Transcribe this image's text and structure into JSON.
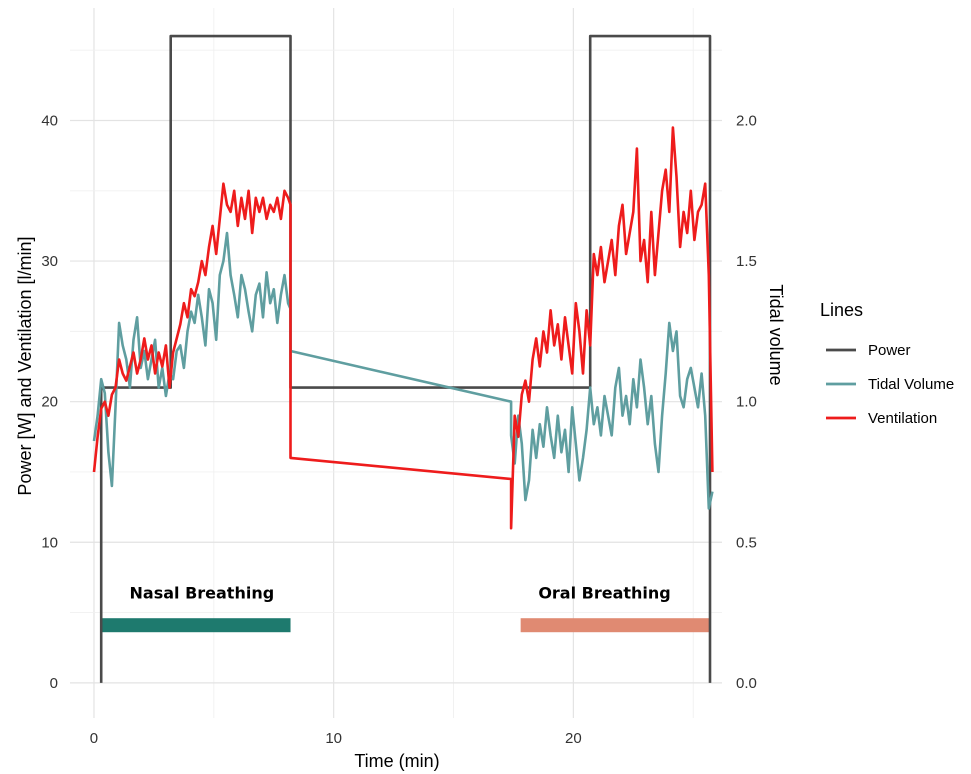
{
  "chart_data": {
    "type": "line",
    "xlabel": "Time (min)",
    "ylabel": "Power [W] and Ventilation [l/min]",
    "y2label": "Tidal volume",
    "xlim": [
      -1,
      26.2
    ],
    "ylim": [
      -2.5,
      48
    ],
    "y2lim": [
      -0.125,
      2.4
    ],
    "x_ticks": [
      0,
      10,
      20
    ],
    "y_ticks": [
      0,
      10,
      20,
      30,
      40
    ],
    "y2_ticks": [
      0.0,
      0.5,
      1.0,
      1.5,
      2.0
    ],
    "x_tick_labels": [
      "0",
      "10",
      "20"
    ],
    "y_tick_labels": [
      "0",
      "10",
      "20",
      "30",
      "40"
    ],
    "y2_tick_labels": [
      "0.0",
      "0.5",
      "1.0",
      "1.5",
      "2.0"
    ],
    "grid": true,
    "legend": {
      "title": "Lines",
      "position": "right",
      "entries": [
        {
          "label": "Power",
          "color": "#4a4a4a"
        },
        {
          "label": "Tidal Volume",
          "color": "#5f9ea0"
        },
        {
          "label": "Ventilation",
          "color": "#ee1c1c"
        }
      ]
    },
    "series": [
      {
        "name": "Power",
        "axis": "left",
        "color": "#4a4a4a",
        "x": [
          0.3,
          0.3,
          3.2,
          3.2,
          8.2,
          8.2,
          20.7,
          20.7,
          25.7,
          25.7
        ],
        "y": [
          0,
          21,
          21,
          46,
          46,
          21,
          21,
          46,
          46,
          0
        ]
      },
      {
        "name": "Tidal Volume",
        "axis": "right",
        "color": "#5f9ea0",
        "x": [
          0.0,
          0.15,
          0.3,
          0.45,
          0.6,
          0.75,
          0.9,
          1.05,
          1.2,
          1.35,
          1.5,
          1.65,
          1.8,
          1.95,
          2.1,
          2.25,
          2.4,
          2.55,
          2.7,
          2.85,
          3.0,
          3.15,
          3.3,
          3.45,
          3.6,
          3.75,
          3.9,
          4.05,
          4.2,
          4.35,
          4.5,
          4.65,
          4.8,
          4.95,
          5.1,
          5.25,
          5.4,
          5.55,
          5.7,
          5.85,
          6.0,
          6.15,
          6.3,
          6.45,
          6.6,
          6.75,
          6.9,
          7.05,
          7.2,
          7.35,
          7.5,
          7.65,
          7.8,
          7.95,
          8.1,
          8.2,
          8.2,
          17.4,
          17.4,
          17.55,
          17.7,
          17.85,
          18.0,
          18.15,
          18.3,
          18.45,
          18.6,
          18.75,
          18.9,
          19.05,
          19.2,
          19.35,
          19.5,
          19.65,
          19.8,
          19.95,
          20.1,
          20.25,
          20.4,
          20.55,
          20.7,
          20.85,
          21.0,
          21.15,
          21.3,
          21.45,
          21.6,
          21.75,
          21.9,
          22.05,
          22.2,
          22.35,
          22.5,
          22.65,
          22.8,
          22.95,
          23.1,
          23.25,
          23.4,
          23.55,
          23.7,
          23.85,
          24.0,
          24.15,
          24.3,
          24.45,
          24.6,
          24.75,
          24.9,
          25.05,
          25.2,
          25.35,
          25.5,
          25.65,
          25.8
        ],
        "y": [
          0.86,
          0.95,
          1.08,
          1.03,
          0.82,
          0.7,
          0.98,
          1.28,
          1.2,
          1.15,
          1.05,
          1.22,
          1.3,
          1.12,
          1.18,
          1.08,
          1.15,
          1.22,
          1.05,
          1.12,
          1.02,
          1.1,
          1.08,
          1.18,
          1.2,
          1.12,
          1.25,
          1.32,
          1.28,
          1.38,
          1.3,
          1.2,
          1.4,
          1.35,
          1.22,
          1.45,
          1.5,
          1.6,
          1.45,
          1.38,
          1.3,
          1.45,
          1.4,
          1.32,
          1.25,
          1.38,
          1.42,
          1.3,
          1.46,
          1.35,
          1.4,
          1.28,
          1.38,
          1.45,
          1.35,
          1.33,
          1.18,
          1.0,
          0.88,
          0.78,
          0.95,
          0.85,
          0.65,
          0.72,
          0.9,
          0.8,
          0.92,
          0.84,
          0.98,
          0.88,
          0.8,
          0.95,
          0.82,
          0.9,
          0.75,
          0.98,
          0.85,
          0.72,
          0.8,
          0.9,
          1.05,
          0.92,
          0.98,
          0.88,
          1.02,
          0.95,
          0.88,
          1.05,
          1.12,
          0.95,
          1.02,
          0.92,
          1.08,
          0.98,
          1.15,
          1.05,
          0.92,
          1.02,
          0.85,
          0.75,
          0.95,
          1.1,
          1.28,
          1.18,
          1.25,
          1.02,
          0.98,
          1.08,
          1.12,
          1.05,
          0.98,
          1.1,
          0.95,
          0.62,
          0.68
        ]
      },
      {
        "name": "Ventilation",
        "axis": "left",
        "color": "#ee1c1c",
        "x": [
          0.0,
          0.15,
          0.3,
          0.45,
          0.6,
          0.75,
          0.9,
          1.05,
          1.2,
          1.35,
          1.5,
          1.65,
          1.8,
          1.95,
          2.1,
          2.25,
          2.4,
          2.55,
          2.7,
          2.85,
          3.0,
          3.15,
          3.3,
          3.45,
          3.6,
          3.75,
          3.9,
          4.05,
          4.2,
          4.35,
          4.5,
          4.65,
          4.8,
          4.95,
          5.1,
          5.25,
          5.4,
          5.55,
          5.7,
          5.85,
          6.0,
          6.15,
          6.3,
          6.45,
          6.6,
          6.75,
          6.9,
          7.05,
          7.2,
          7.35,
          7.5,
          7.65,
          7.8,
          7.95,
          8.1,
          8.2,
          8.2,
          17.4,
          17.4,
          17.55,
          17.7,
          17.85,
          18.0,
          18.15,
          18.3,
          18.45,
          18.6,
          18.75,
          18.9,
          19.05,
          19.2,
          19.35,
          19.5,
          19.65,
          19.8,
          19.95,
          20.1,
          20.25,
          20.4,
          20.55,
          20.7,
          20.85,
          21.0,
          21.15,
          21.3,
          21.45,
          21.6,
          21.75,
          21.9,
          22.05,
          22.2,
          22.35,
          22.5,
          22.65,
          22.8,
          22.95,
          23.1,
          23.25,
          23.4,
          23.55,
          23.7,
          23.85,
          24.0,
          24.15,
          24.3,
          24.45,
          24.6,
          24.75,
          24.9,
          25.05,
          25.2,
          25.35,
          25.5,
          25.65,
          25.8
        ],
        "y": [
          15.0,
          17.5,
          19.5,
          20.0,
          19.0,
          20.5,
          21.0,
          23.0,
          22.0,
          21.5,
          22.5,
          23.5,
          22.0,
          23.0,
          24.5,
          23.0,
          24.0,
          22.0,
          23.5,
          22.5,
          24.0,
          21.0,
          23.5,
          24.5,
          25.5,
          27.0,
          26.0,
          28.0,
          27.5,
          28.5,
          30.0,
          29.0,
          31.0,
          32.5,
          30.5,
          33.0,
          35.5,
          34.0,
          33.5,
          35.0,
          32.5,
          34.5,
          33.0,
          35.0,
          32.0,
          34.5,
          33.5,
          34.5,
          33.0,
          34.0,
          33.5,
          34.5,
          33.0,
          35.0,
          34.5,
          34.0,
          16.0,
          14.5,
          11.0,
          19.0,
          17.5,
          20.5,
          21.5,
          20.0,
          23.0,
          24.5,
          22.5,
          25.0,
          23.5,
          26.5,
          24.0,
          25.5,
          23.0,
          26.0,
          24.0,
          22.0,
          27.0,
          25.0,
          22.0,
          26.5,
          24.0,
          30.5,
          29.0,
          31.0,
          28.5,
          30.0,
          31.5,
          29.0,
          32.5,
          34.0,
          30.5,
          32.0,
          33.5,
          38.0,
          30.0,
          31.5,
          28.5,
          33.5,
          29.0,
          32.0,
          35.0,
          36.5,
          33.5,
          39.5,
          36.0,
          31.0,
          33.5,
          32.0,
          35.0,
          31.5,
          33.5,
          34.0,
          35.5,
          29.0,
          15.0
        ]
      }
    ],
    "annotations": [
      {
        "text": "Nasal Breathing",
        "x": 4.5,
        "y": 6.0
      },
      {
        "text": "Oral Breathing",
        "x": 21.3,
        "y": 6.0
      }
    ],
    "phase_bars": [
      {
        "label": "Nasal Breathing",
        "x_start": 0.3,
        "x_end": 8.2,
        "y": 4.1,
        "color": "#1e7a6e"
      },
      {
        "label": "Oral Breathing",
        "x_start": 17.8,
        "x_end": 25.7,
        "y": 4.1,
        "color": "#e08a72"
      }
    ]
  }
}
